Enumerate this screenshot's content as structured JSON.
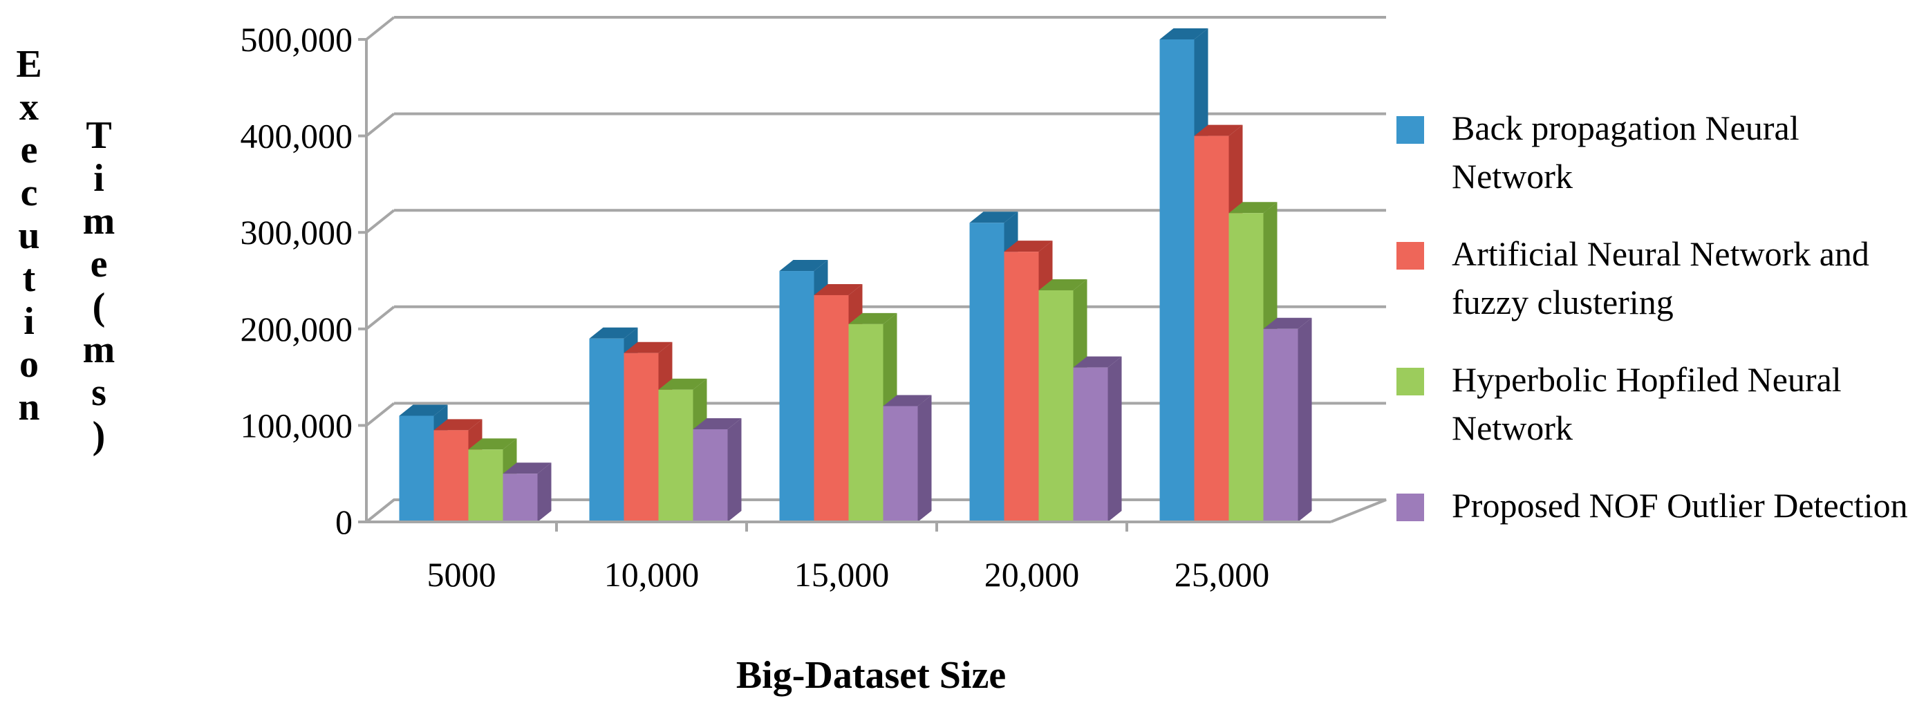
{
  "chart_data": {
    "type": "bar",
    "categories": [
      "5000",
      "10,000",
      "15,000",
      "20,000",
      "25,000"
    ],
    "series": [
      {
        "name": "Back propagation Neural Network",
        "values": [
          110000,
          190000,
          260000,
          310000,
          500000
        ]
      },
      {
        "name": "Artificial Neural Network and fuzzy clustering",
        "values": [
          95000,
          175000,
          235000,
          280000,
          400000
        ]
      },
      {
        "name": "Hyperbolic Hopfiled Neural Network",
        "values": [
          75000,
          137000,
          205000,
          240000,
          320000
        ]
      },
      {
        "name": "Proposed NOF Outlier Detection",
        "values": [
          50000,
          96000,
          120000,
          160000,
          200000
        ]
      }
    ],
    "colors": [
      "#3a96cc",
      "#ee6659",
      "#9ccc5c",
      "#9d7cba"
    ],
    "side_colors": [
      "#1d6c9a",
      "#b53b32",
      "#6c9b34",
      "#6e5589"
    ],
    "xlabel": "Big-Dataset Size",
    "ylabel_col1": "Execution",
    "ylabel_col2": "Time(ms)",
    "yticks": [
      "0",
      "100,000",
      "200,000",
      "300,000",
      "400,000",
      "500,000"
    ],
    "ylim": [
      0,
      500000
    ],
    "grid": true,
    "legend": "right"
  }
}
